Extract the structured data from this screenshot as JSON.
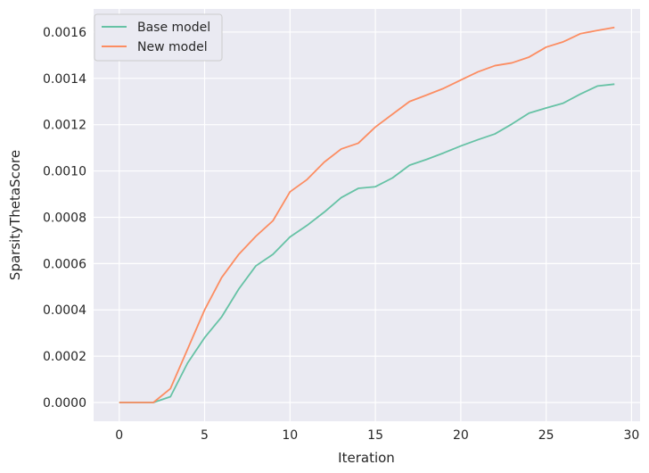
{
  "chart_data": {
    "type": "line",
    "title": "",
    "xlabel": "Iteration",
    "ylabel": "SparsityThetaScore",
    "xlim": [
      -1.5,
      30.5
    ],
    "ylim": [
      -8.1e-05,
      0.0017
    ],
    "xticks": [
      0,
      5,
      10,
      15,
      20,
      25,
      30
    ],
    "yticks": [
      0.0,
      0.0002,
      0.0004,
      0.0006,
      0.0008,
      0.001,
      0.0012,
      0.0014,
      0.0016
    ],
    "ytick_labels": [
      "0.0000",
      "0.0002",
      "0.0004",
      "0.0006",
      "0.0008",
      "0.0010",
      "0.0012",
      "0.0014",
      "0.0016"
    ],
    "grid": true,
    "legend_position": "top-left",
    "x": [
      0,
      1,
      2,
      3,
      4,
      5,
      6,
      7,
      8,
      9,
      10,
      11,
      12,
      13,
      14,
      15,
      16,
      17,
      18,
      19,
      20,
      21,
      22,
      23,
      24,
      25,
      26,
      27,
      28,
      29
    ],
    "series": [
      {
        "name": "Base model",
        "color": "#66c2a5",
        "values": [
          0.0,
          0.0,
          0.0,
          2.5e-05,
          0.00017,
          0.00028,
          0.00037,
          0.00049,
          0.00059,
          0.00064,
          0.000715,
          0.000765,
          0.000822,
          0.000885,
          0.000925,
          0.000932,
          0.00097,
          0.001025,
          0.00105,
          0.001078,
          0.001108,
          0.001135,
          0.00116,
          0.001203,
          0.00125,
          0.001272,
          0.001293,
          0.001332,
          0.001367,
          0.001375
        ]
      },
      {
        "name": "New model",
        "color": "#fc8d62",
        "values": [
          0.0,
          0.0,
          0.0,
          6e-05,
          0.00023,
          0.0004,
          0.00054,
          0.00064,
          0.000718,
          0.000785,
          0.00091,
          0.000963,
          0.001038,
          0.001095,
          0.00112,
          0.00119,
          0.001245,
          0.0013,
          0.001328,
          0.001357,
          0.001393,
          0.001428,
          0.001455,
          0.001467,
          0.001492,
          0.001535,
          0.001558,
          0.001593,
          0.001607,
          0.00162
        ]
      }
    ]
  }
}
